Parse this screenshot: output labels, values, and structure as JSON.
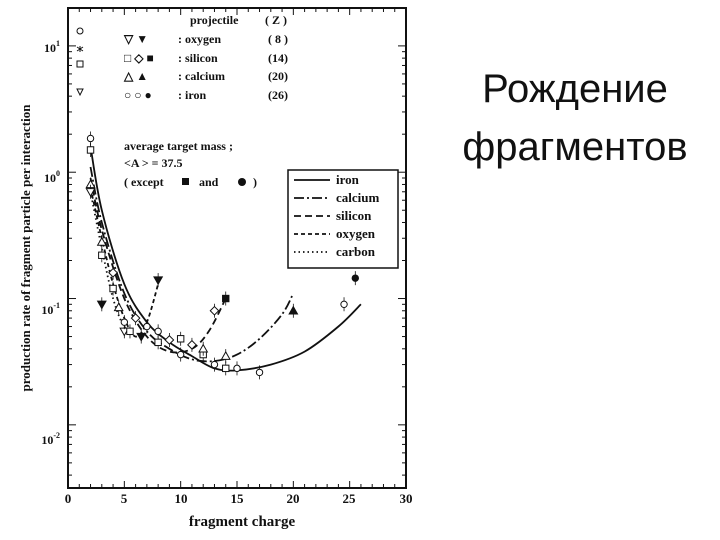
{
  "slide": {
    "title_line1": "Рождение",
    "title_line2": "фрагментов"
  },
  "chart_data": {
    "type": "scatter",
    "title": "",
    "xlabel": "fragment charge",
    "ylabel": "production rate of fragment particle per interaction",
    "xlim": [
      0,
      30
    ],
    "ylim_log10": [
      -2.5,
      1.3
    ],
    "x_ticks": [
      "0",
      "5",
      "10",
      "15",
      "20",
      "25",
      "30"
    ],
    "y_ticks": [
      {
        "base": "10",
        "exp": "1",
        "value": 10
      },
      {
        "base": "10",
        "exp": "0",
        "value": 1
      },
      {
        "base": "10",
        "exp": "-1",
        "value": 0.1
      },
      {
        "base": "10",
        "exp": "-2",
        "value": 0.01
      }
    ],
    "legend_symbols": {
      "header_projectile": "projectile",
      "header_z": "( Z )",
      "rows": [
        {
          "symbols": "▽ ▼",
          "name": ": oxygen",
          "z": "( 8 )"
        },
        {
          "symbols": "□ ◇ ■",
          "name": ": silicon",
          "z": "(14)"
        },
        {
          "symbols": "△ ▲",
          "name": ": calcium",
          "z": "(20)"
        },
        {
          "symbols": "○ ○ ●",
          "name": ": iron",
          "z": "(26)"
        }
      ]
    },
    "annotation": {
      "line1": "average target mass ;",
      "line2": "<A > = 37.5",
      "line3_a": "( except",
      "line3_b": "and",
      "line3_c": ")"
    },
    "legend_lines": [
      {
        "name": "iron",
        "dash": "solid"
      },
      {
        "name": "calcium",
        "dash": "longdash-dot"
      },
      {
        "name": "silicon",
        "dash": "dash"
      },
      {
        "name": "oxygen",
        "dash": "shortdash"
      },
      {
        "name": "carbon",
        "dash": "dot"
      }
    ],
    "series": [
      {
        "name": "iron",
        "dash": "solid",
        "x": [
          2,
          3,
          5,
          7,
          9,
          11,
          13,
          15,
          18,
          21,
          24,
          26
        ],
        "y": [
          1.6,
          0.5,
          0.13,
          0.065,
          0.045,
          0.035,
          0.028,
          0.027,
          0.03,
          0.038,
          0.06,
          0.09
        ]
      },
      {
        "name": "calcium",
        "dash": "longdash-dot",
        "x": [
          2,
          3,
          5,
          7,
          9,
          11,
          13,
          15,
          17,
          19,
          20
        ],
        "y": [
          1.1,
          0.4,
          0.11,
          0.055,
          0.04,
          0.033,
          0.032,
          0.036,
          0.048,
          0.075,
          0.11
        ]
      },
      {
        "name": "silicon",
        "dash": "dash",
        "x": [
          2,
          3,
          5,
          7,
          9,
          11,
          12.5,
          14
        ],
        "y": [
          0.9,
          0.35,
          0.1,
          0.05,
          0.038,
          0.04,
          0.055,
          0.1
        ]
      },
      {
        "name": "oxygen",
        "dash": "shortdash",
        "x": [
          2,
          3,
          4,
          5,
          6,
          7,
          8
        ],
        "y": [
          0.75,
          0.3,
          0.13,
          0.07,
          0.05,
          0.065,
          0.13
        ]
      },
      {
        "name": "carbon",
        "dash": "dot",
        "x": [
          2,
          3,
          4,
          5,
          6
        ],
        "y": [
          0.7,
          0.25,
          0.1,
          0.06,
          0.055
        ]
      }
    ],
    "points": [
      {
        "x": 2,
        "y": 1.85,
        "marker": "circle-open"
      },
      {
        "x": 2,
        "y": 1.5,
        "marker": "square-open"
      },
      {
        "x": 2,
        "y": 0.8,
        "marker": "tri-up-open"
      },
      {
        "x": 2,
        "y": 0.7,
        "marker": "tri-down-open"
      },
      {
        "x": 3,
        "y": 0.28,
        "marker": "tri-up-open"
      },
      {
        "x": 3,
        "y": 0.22,
        "marker": "square-open"
      },
      {
        "x": 3,
        "y": 0.09,
        "marker": "tri-down-filled"
      },
      {
        "x": 4,
        "y": 0.16,
        "marker": "diamond-open"
      },
      {
        "x": 4,
        "y": 0.12,
        "marker": "square-open"
      },
      {
        "x": 4.5,
        "y": 0.085,
        "marker": "tri-up-open"
      },
      {
        "x": 5,
        "y": 0.055,
        "marker": "tri-down-open"
      },
      {
        "x": 5,
        "y": 0.065,
        "marker": "circle-open"
      },
      {
        "x": 5.5,
        "y": 0.055,
        "marker": "square-open"
      },
      {
        "x": 6,
        "y": 0.07,
        "marker": "diamond-open"
      },
      {
        "x": 6.5,
        "y": 0.05,
        "marker": "tri-down-filled"
      },
      {
        "x": 7,
        "y": 0.06,
        "marker": "circle-open"
      },
      {
        "x": 8,
        "y": 0.055,
        "marker": "circle-open"
      },
      {
        "x": 8,
        "y": 0.045,
        "marker": "square-open"
      },
      {
        "x": 8,
        "y": 0.14,
        "marker": "tri-down-filled"
      },
      {
        "x": 9,
        "y": 0.047,
        "marker": "diamond-open"
      },
      {
        "x": 10,
        "y": 0.048,
        "marker": "square-open"
      },
      {
        "x": 10,
        "y": 0.036,
        "marker": "circle-open"
      },
      {
        "x": 11,
        "y": 0.043,
        "marker": "diamond-open"
      },
      {
        "x": 12,
        "y": 0.036,
        "marker": "square-open"
      },
      {
        "x": 12,
        "y": 0.04,
        "marker": "tri-up-open"
      },
      {
        "x": 13,
        "y": 0.08,
        "marker": "diamond-open"
      },
      {
        "x": 13,
        "y": 0.03,
        "marker": "circle-open"
      },
      {
        "x": 14,
        "y": 0.1,
        "marker": "square-filled"
      },
      {
        "x": 14,
        "y": 0.028,
        "marker": "square-open"
      },
      {
        "x": 14,
        "y": 0.035,
        "marker": "tri-up-open"
      },
      {
        "x": 15,
        "y": 0.028,
        "marker": "circle-open"
      },
      {
        "x": 17,
        "y": 0.026,
        "marker": "circle-open"
      },
      {
        "x": 20,
        "y": 0.08,
        "marker": "tri-up-filled"
      },
      {
        "x": 24.5,
        "y": 0.09,
        "marker": "circle-open"
      },
      {
        "x": 25.5,
        "y": 0.145,
        "marker": "circle-filled"
      }
    ]
  }
}
